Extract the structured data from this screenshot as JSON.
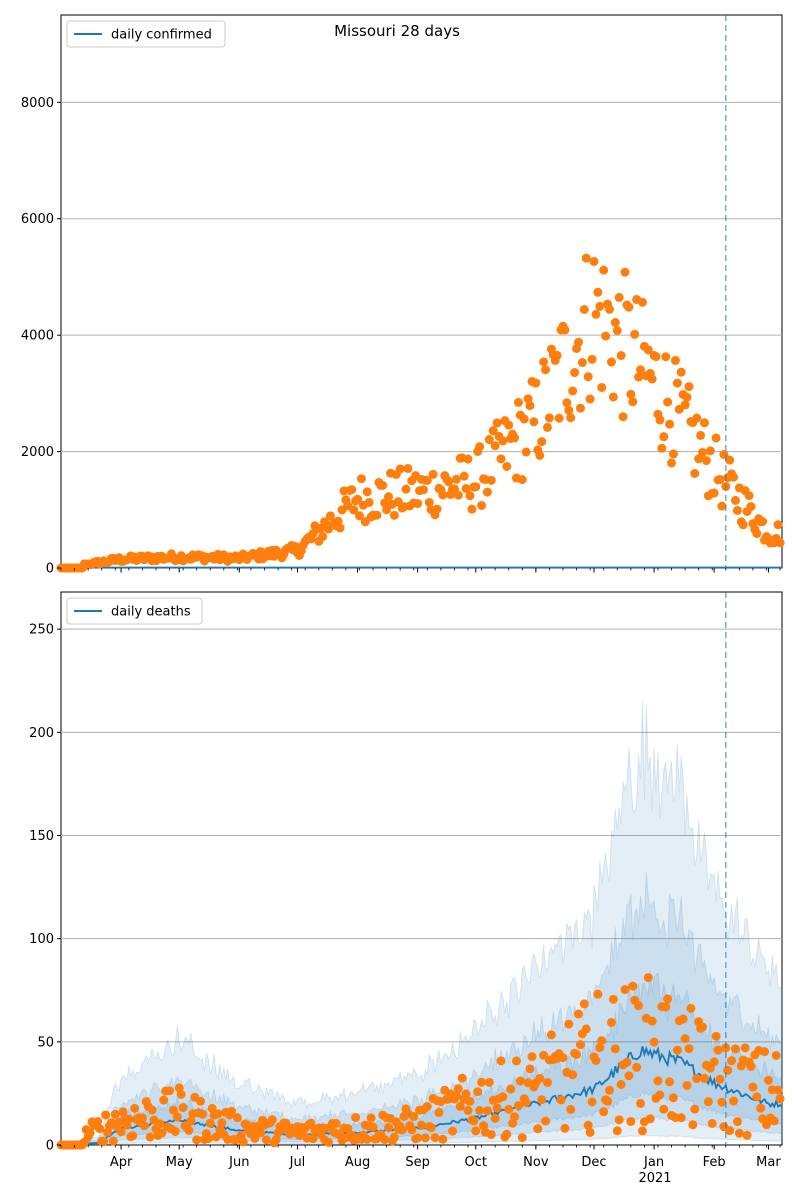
{
  "title": "Missouri 28 days",
  "chart_data": [
    {
      "type": "scatter",
      "legend": "daily confirmed",
      "legend_placement": "upper-left",
      "ylim": [
        0,
        9500
      ],
      "yticks": [
        0,
        2000,
        4000,
        6000,
        8000
      ],
      "grid": "y",
      "vline_date": "2021-02-07",
      "line_series": {
        "name": "daily confirmed",
        "color": "#1f77b4"
      },
      "points_color": "#ff7f0e",
      "points_key_dates": [
        "2020-03-01",
        "2020-04-01",
        "2020-05-01",
        "2020-06-01",
        "2020-07-01",
        "2020-08-01",
        "2020-09-01",
        "2020-10-01",
        "2020-11-01",
        "2020-12-01",
        "2021-01-01",
        "2021-02-01",
        "2021-03-01"
      ],
      "points_key_values": [
        0,
        150,
        190,
        170,
        300,
        1200,
        1300,
        1500,
        2500,
        4400,
        3200,
        1700,
        600
      ]
    },
    {
      "type": "line",
      "legend": "daily deaths",
      "legend_placement": "upper-left",
      "ylim": [
        0,
        268
      ],
      "yticks": [
        0,
        50,
        100,
        150,
        200,
        250
      ],
      "grid": "y",
      "vline_date": "2021-02-07",
      "line_series": {
        "name": "daily deaths",
        "color": "#1f77b4"
      },
      "points_color": "#ff7f0e",
      "median_key_dates": [
        "2020-03-01",
        "2020-03-20",
        "2020-04-01",
        "2020-05-01",
        "2020-06-01",
        "2020-06-15",
        "2020-07-01",
        "2020-08-01",
        "2020-09-01",
        "2020-10-01",
        "2020-11-01",
        "2020-12-01",
        "2020-12-25",
        "2021-01-15",
        "2021-02-01",
        "2021-03-01"
      ],
      "median_key_values": [
        0,
        1,
        8,
        12,
        7,
        6,
        5,
        6,
        8,
        13,
        20,
        27,
        46,
        40,
        30,
        20
      ],
      "points_key_dates": [
        "2020-03-01",
        "2020-04-01",
        "2020-05-01",
        "2020-06-01",
        "2020-07-01",
        "2020-08-01",
        "2020-09-01",
        "2020-10-01",
        "2020-11-01",
        "2020-12-01",
        "2021-01-01",
        "2021-02-01",
        "2021-03-01"
      ],
      "points_key_values": [
        0,
        12,
        15,
        8,
        6,
        8,
        10,
        20,
        25,
        40,
        45,
        30,
        25
      ]
    }
  ],
  "x_axis": {
    "start": "2020-03-01",
    "end": "2021-03-08",
    "ticks": [
      {
        "date": "2020-04-01",
        "label": "Apr"
      },
      {
        "date": "2020-05-01",
        "label": "May"
      },
      {
        "date": "2020-06-01",
        "label": "Jun"
      },
      {
        "date": "2020-07-01",
        "label": "Jul"
      },
      {
        "date": "2020-08-01",
        "label": "Aug"
      },
      {
        "date": "2020-09-01",
        "label": "Sep"
      },
      {
        "date": "2020-10-01",
        "label": "Oct"
      },
      {
        "date": "2020-11-01",
        "label": "Nov"
      },
      {
        "date": "2020-12-01",
        "label": "Dec"
      },
      {
        "date": "2021-01-01",
        "label": "Jan"
      },
      {
        "date": "2021-02-01",
        "label": "Feb"
      },
      {
        "date": "2021-03-01",
        "label": "Mar"
      }
    ],
    "year_label": "2021"
  },
  "colors": {
    "line": "#1f77b4",
    "points": "#ff7f0e",
    "band": "#1f77b4",
    "grid": "#b0b0b0",
    "vline": "#1f77b4"
  }
}
